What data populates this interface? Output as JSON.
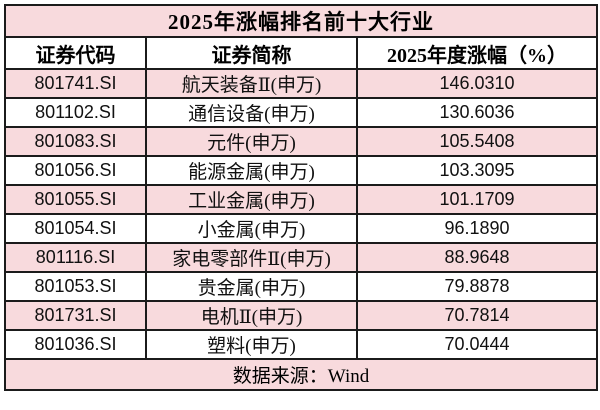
{
  "chart_data": {
    "type": "table",
    "title": "2025年涨幅排名前十大行业",
    "columns": [
      "证券代码",
      "证券简称",
      "2025年度涨幅（%）"
    ],
    "rows": [
      {
        "code": "801741.SI",
        "name": "航天装备Ⅱ(申万)",
        "value": "146.0310"
      },
      {
        "code": "801102.SI",
        "name": "通信设备(申万)",
        "value": "130.6036"
      },
      {
        "code": "801083.SI",
        "name": "元件(申万)",
        "value": "105.5408"
      },
      {
        "code": "801056.SI",
        "name": "能源金属(申万)",
        "value": "103.3095"
      },
      {
        "code": "801055.SI",
        "name": "工业金属(申万)",
        "value": "101.1709"
      },
      {
        "code": "801054.SI",
        "name": "小金属(申万)",
        "value": "96.1890"
      },
      {
        "code": "801116.SI",
        "name": "家电零部件Ⅱ(申万)",
        "value": "88.9648"
      },
      {
        "code": "801053.SI",
        "name": "贵金属(申万)",
        "value": "79.8878"
      },
      {
        "code": "801731.SI",
        "name": "电机Ⅱ(申万)",
        "value": "70.7814"
      },
      {
        "code": "801036.SI",
        "name": "塑料(申万)",
        "value": "70.0444"
      }
    ],
    "source_note": "数据来源：Wind"
  },
  "colors": {
    "row_pink": "#f8dadd",
    "row_white": "#ffffff",
    "border": "#1b1b1b",
    "text": "#000000"
  }
}
